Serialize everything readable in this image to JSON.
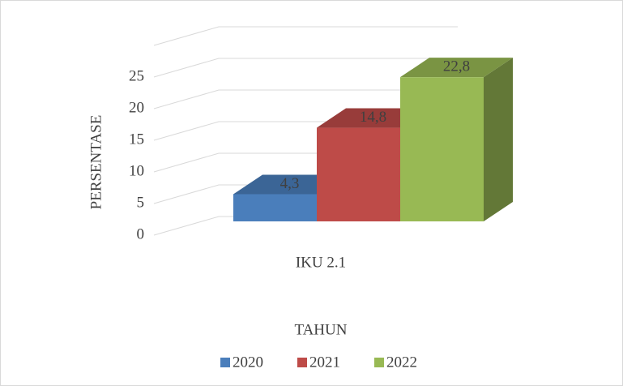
{
  "chart_data": {
    "type": "bar3d",
    "categories": [
      "IKU 2.1"
    ],
    "series": [
      {
        "name": "2020",
        "color": "#4a7ebb",
        "values": [
          4.3
        ],
        "value_labels": [
          "4,3"
        ]
      },
      {
        "name": "2021",
        "color": "#be4b48",
        "values": [
          14.8
        ],
        "value_labels": [
          "14,8"
        ]
      },
      {
        "name": "2022",
        "color": "#98b954",
        "values": [
          22.8
        ],
        "value_labels": [
          "22,8"
        ]
      }
    ],
    "ylabel": "PERSENTASE",
    "xlabel": "TAHUN",
    "ylim": [
      0,
      30
    ],
    "yticks": [
      0,
      5,
      10,
      15,
      20,
      25
    ],
    "grid": true,
    "legend": "bottom"
  }
}
